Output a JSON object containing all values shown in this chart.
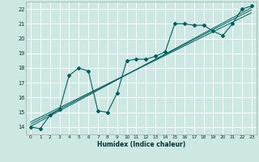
{
  "title": "",
  "xlabel": "Humidex (Indice chaleur)",
  "bg_color": "#cde8e2",
  "grid_color": "#ffffff",
  "line_color": "#006060",
  "xlim": [
    -0.5,
    23.5
  ],
  "ylim": [
    13.5,
    22.5
  ],
  "xticks": [
    0,
    1,
    2,
    3,
    4,
    5,
    6,
    7,
    8,
    9,
    10,
    11,
    12,
    13,
    14,
    15,
    16,
    17,
    18,
    19,
    20,
    21,
    22,
    23
  ],
  "yticks": [
    14,
    15,
    16,
    17,
    18,
    19,
    20,
    21,
    22
  ],
  "data_x": [
    0,
    1,
    2,
    3,
    4,
    5,
    6,
    7,
    8,
    9,
    10,
    11,
    12,
    13,
    14,
    15,
    16,
    17,
    18,
    19,
    20,
    21,
    22,
    23
  ],
  "data_y": [
    14.0,
    13.9,
    14.8,
    15.2,
    17.5,
    18.0,
    17.8,
    15.1,
    15.0,
    16.3,
    18.5,
    18.6,
    18.6,
    18.8,
    19.1,
    21.0,
    21.0,
    20.9,
    20.9,
    20.5,
    20.2,
    21.0,
    22.0,
    22.2
  ],
  "reg_lines": [
    {
      "x": [
        0,
        23
      ],
      "y": [
        14.05,
        22.1
      ]
    },
    {
      "x": [
        0,
        23
      ],
      "y": [
        14.35,
        21.75
      ]
    },
    {
      "x": [
        0,
        23
      ],
      "y": [
        14.2,
        21.95
      ]
    }
  ]
}
